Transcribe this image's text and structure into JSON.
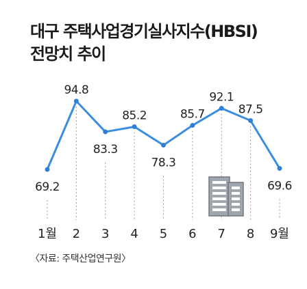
{
  "title_line1": "대구 주택사업경기실사지수(HBSI)",
  "title_line2": "전망치 추이",
  "source": "〈자료: 주택산업연구원〉",
  "colors": {
    "line": "#3a8de0",
    "point": "#2f7fd6",
    "grid": "#9a9a9a",
    "text": "#222222",
    "icon_fill": "#9fa6ad",
    "icon_stroke": "#6f777e"
  },
  "chart_data": {
    "type": "line",
    "categories": [
      "1월",
      "2",
      "3",
      "4",
      "5",
      "6",
      "7",
      "8",
      "9월"
    ],
    "values": [
      69.2,
      94.8,
      83.3,
      85.2,
      78.3,
      85.7,
      92.1,
      87.5,
      69.6
    ],
    "labels": [
      "69.2",
      "94.8",
      "83.3",
      "85.2",
      "78.3",
      "85.7",
      "92.1",
      "87.5",
      "69.6"
    ],
    "ylim": [
      60,
      100
    ],
    "grid": false,
    "decoration": "building-icon"
  }
}
